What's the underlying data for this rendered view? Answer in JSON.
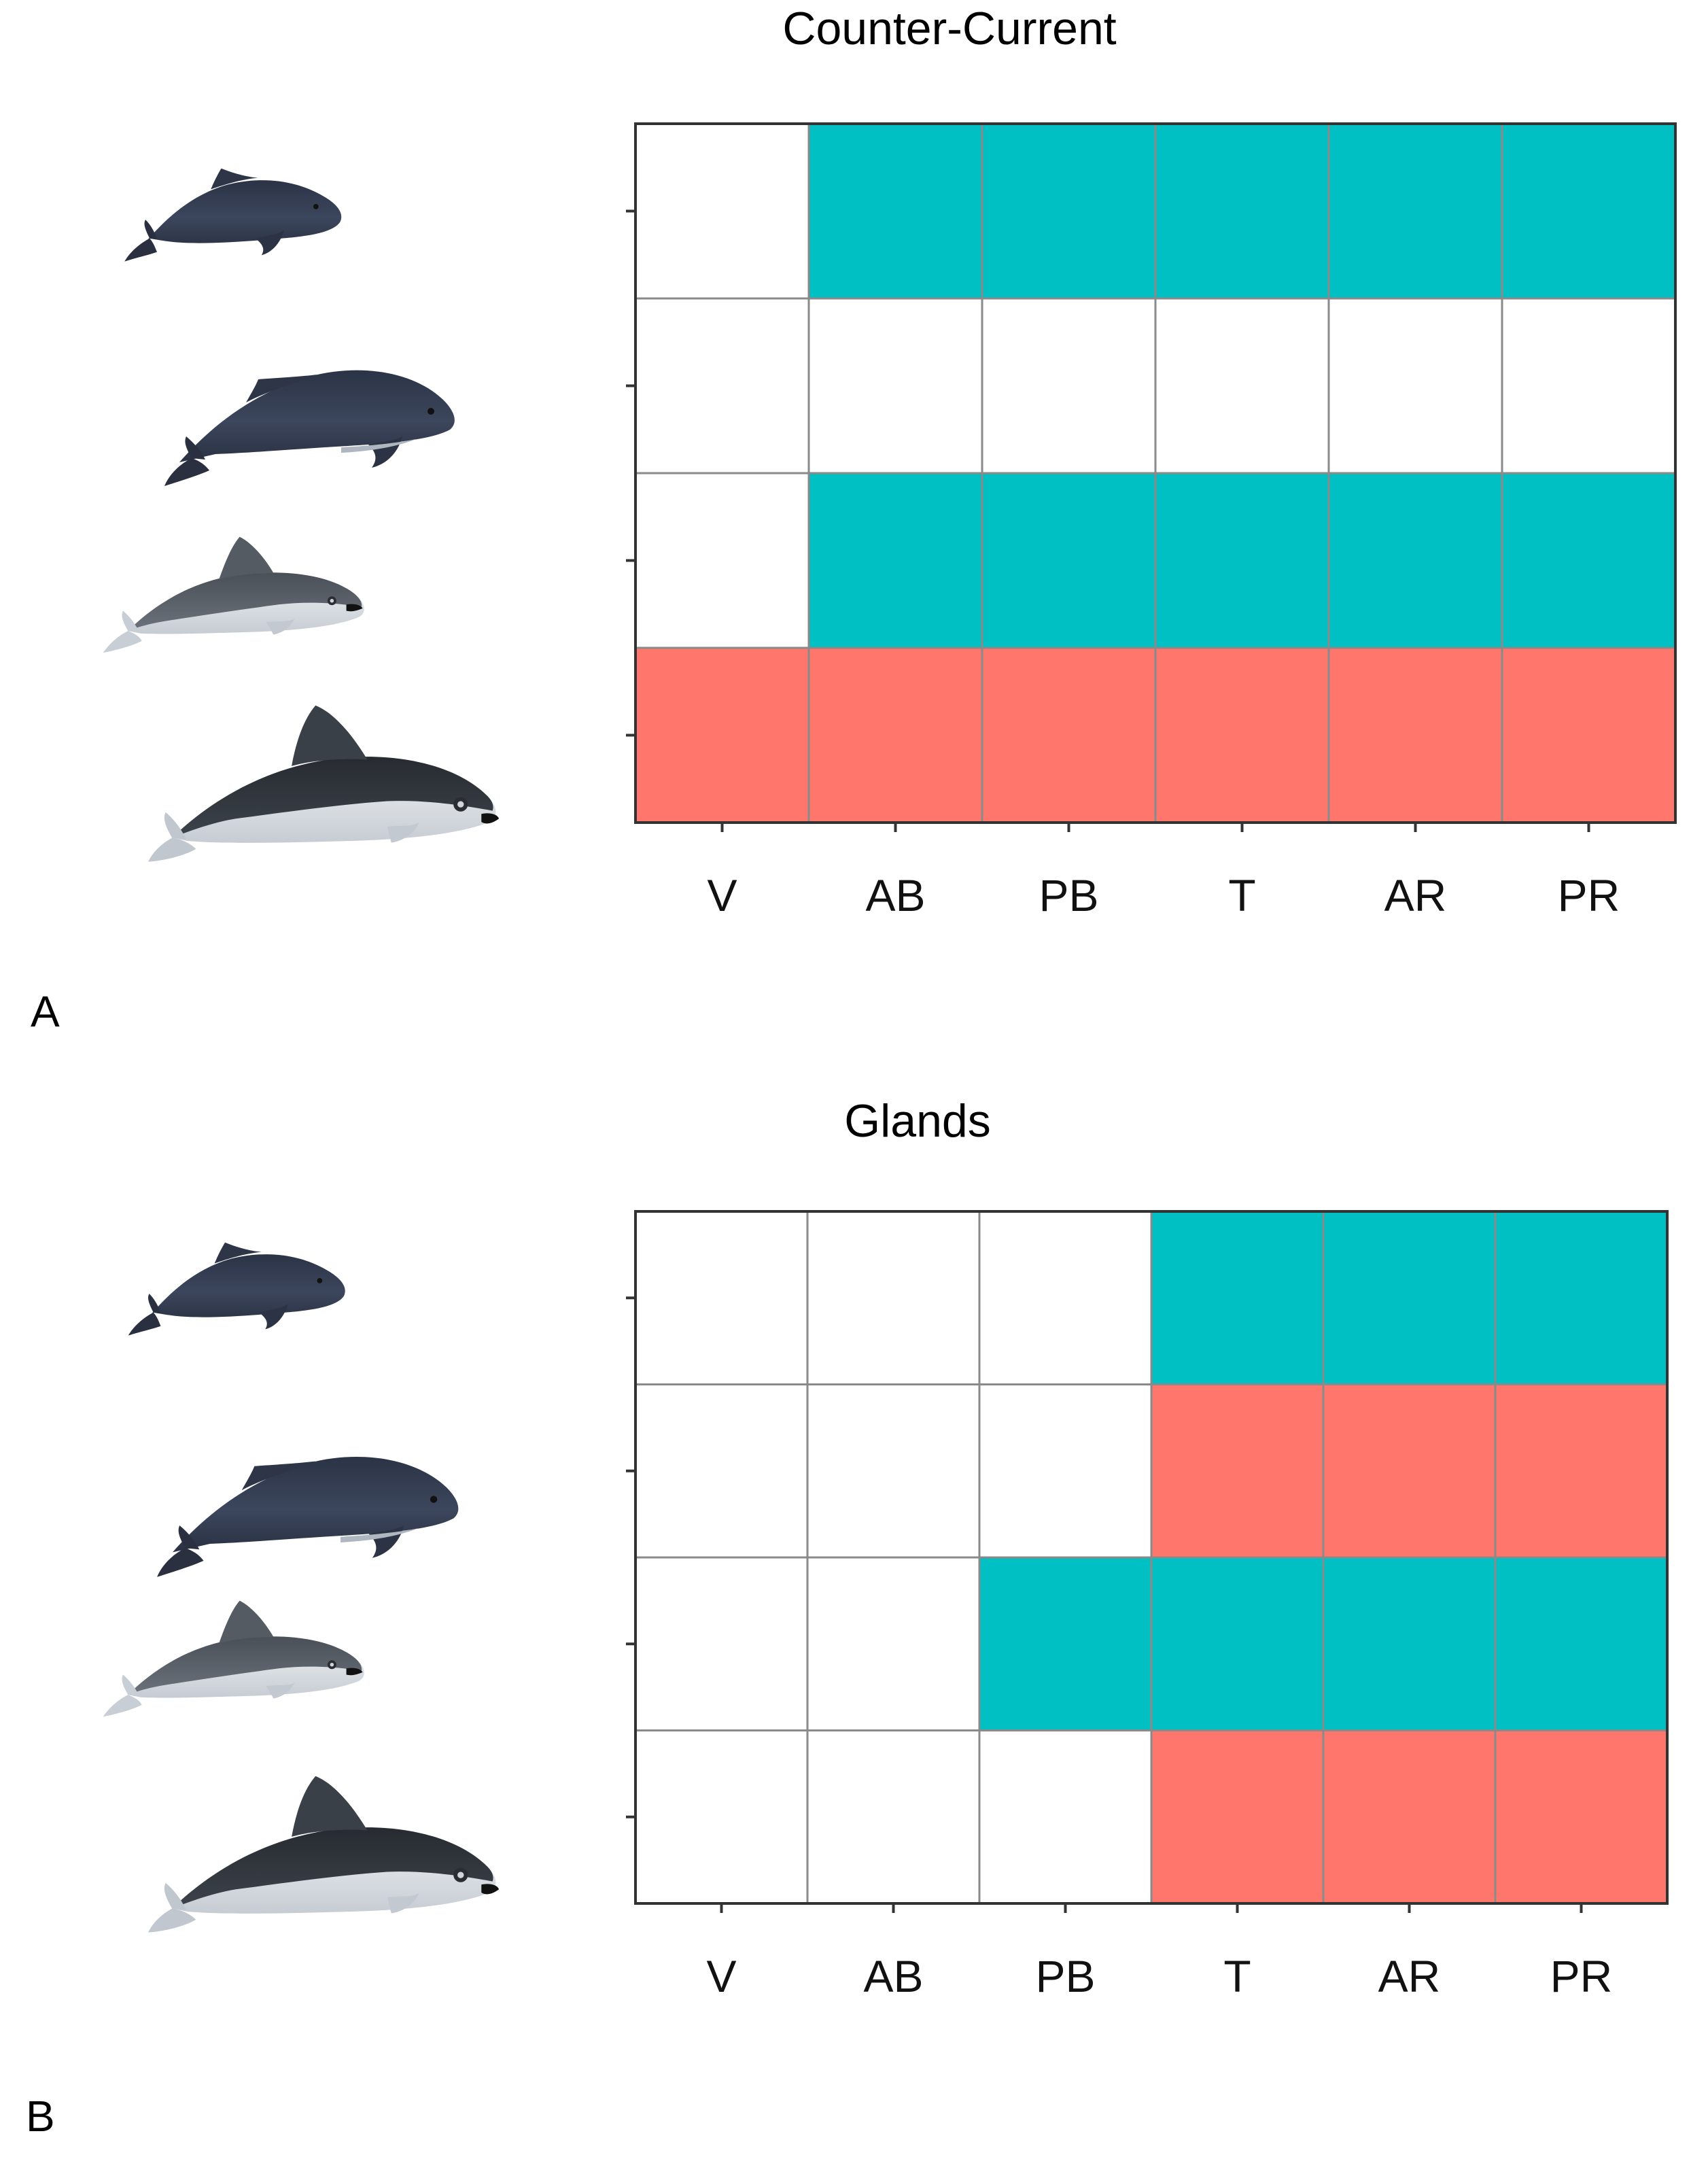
{
  "colors": {
    "present": "#00C0C3",
    "contrast": "#FF766C",
    "absent": "#FFFFFF",
    "grid": "#8a8a8a",
    "frame": "#333333"
  },
  "panels": [
    {
      "label": "A",
      "title": "Counter-Current"
    },
    {
      "label": "B",
      "title": "Glands"
    }
  ],
  "chart_data": [
    {
      "type": "heatmap",
      "title": "Counter-Current",
      "categories": [
        "V",
        "AB",
        "PB",
        "T",
        "AR",
        "PR"
      ],
      "rows": [
        [
          "absent",
          "present",
          "present",
          "present",
          "present",
          "present"
        ],
        [
          "absent",
          "absent",
          "absent",
          "absent",
          "absent",
          "absent"
        ],
        [
          "absent",
          "present",
          "present",
          "present",
          "present",
          "present"
        ],
        [
          "contrast",
          "contrast",
          "contrast",
          "contrast",
          "contrast",
          "contrast"
        ]
      ],
      "row_icons": [
        "porpoise-dark-small-icon",
        "porpoise-dark-large-icon",
        "porpoise-grey-small-icon",
        "porpoise-black-large-icon"
      ]
    },
    {
      "type": "heatmap",
      "title": "Glands",
      "categories": [
        "V",
        "AB",
        "PB",
        "T",
        "AR",
        "PR"
      ],
      "rows": [
        [
          "absent",
          "absent",
          "absent",
          "present",
          "present",
          "present"
        ],
        [
          "absent",
          "absent",
          "absent",
          "contrast",
          "contrast",
          "contrast"
        ],
        [
          "absent",
          "absent",
          "present",
          "present",
          "present",
          "present"
        ],
        [
          "absent",
          "absent",
          "absent",
          "contrast",
          "contrast",
          "contrast"
        ]
      ],
      "row_icons": [
        "porpoise-dark-small-icon",
        "porpoise-dark-large-icon",
        "porpoise-grey-small-icon",
        "porpoise-black-large-icon"
      ]
    }
  ]
}
